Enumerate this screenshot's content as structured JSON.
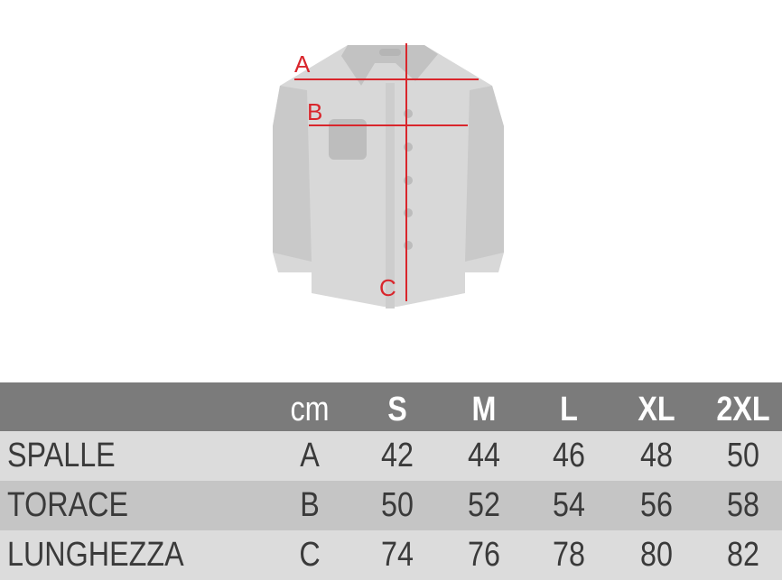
{
  "diagram": {
    "labels": [
      "A",
      "B",
      "C"
    ],
    "line_color": "#d9262c",
    "shirt_color": "#d6d6d6"
  },
  "table": {
    "unit": "cm",
    "sizes": [
      "S",
      "M",
      "L",
      "XL",
      "2XL"
    ],
    "rows": [
      {
        "name": "SPALLE",
        "code": "A",
        "values": [
          "42",
          "44",
          "46",
          "48",
          "50"
        ]
      },
      {
        "name": "TORACE",
        "code": "B",
        "values": [
          "50",
          "52",
          "54",
          "56",
          "58"
        ]
      },
      {
        "name": "LUNGHEZZA",
        "code": "C",
        "values": [
          "74",
          "76",
          "78",
          "80",
          "82"
        ]
      }
    ]
  }
}
